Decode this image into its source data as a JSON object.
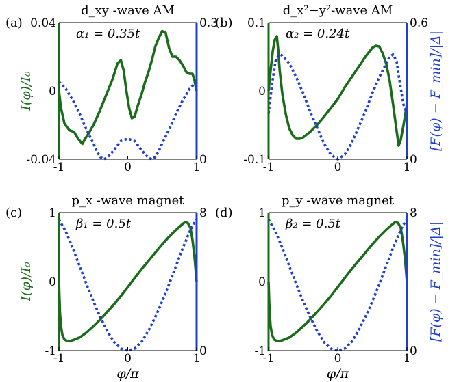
{
  "colors": {
    "green": "#1a6b1a",
    "blue": "#1f3fd0"
  },
  "ylabel_left": "I(φ)/I₀",
  "ylabel_right": "[F(φ) − F_min]/|Δ|",
  "xlabel": "φ/π",
  "chart_data": [
    {
      "panel": "(a)",
      "type": "line",
      "title": "d_xy -wave AM",
      "annotation": "α₁ = 0.35t",
      "xlim": [
        -1,
        1
      ],
      "ylim_left": [
        -0.04,
        0.04
      ],
      "ylim_right": [
        0,
        0.3
      ],
      "xticks": [
        "-1",
        "0",
        "1"
      ],
      "yticks_left": [
        "0.04",
        "0",
        "-0.04"
      ],
      "yticks_right": [
        "0.3",
        "0"
      ],
      "series": [
        {
          "axis": "left",
          "style": "solid",
          "x": [
            -1.0,
            -0.97,
            -0.92,
            -0.85,
            -0.78,
            -0.72,
            -0.66,
            -0.62,
            -0.57,
            -0.5,
            -0.42,
            -0.35,
            -0.28,
            -0.22,
            -0.15,
            -0.1,
            -0.06,
            -0.02,
            0.02,
            0.06,
            0.1,
            0.15,
            0.2,
            0.25,
            0.3,
            0.35,
            0.4,
            0.45,
            0.5,
            0.55,
            0.6,
            0.65,
            0.7,
            0.75,
            0.8,
            0.85,
            0.9,
            0.94,
            0.97,
            1.0
          ],
          "y": [
            0.0,
            -0.01,
            -0.019,
            -0.023,
            -0.024,
            -0.028,
            -0.031,
            -0.028,
            -0.025,
            -0.02,
            -0.013,
            -0.006,
            0.001,
            0.007,
            0.016,
            0.018,
            0.012,
            0.0,
            -0.01,
            -0.016,
            -0.015,
            -0.008,
            -0.002,
            0.005,
            0.011,
            0.018,
            0.026,
            0.031,
            0.035,
            0.034,
            0.025,
            0.02,
            0.02,
            0.018,
            0.015,
            0.011,
            0.01,
            0.01,
            0.006,
            0.0
          ]
        },
        {
          "axis": "right",
          "style": "dotted",
          "x": [
            -1.0,
            -0.9,
            -0.8,
            -0.7,
            -0.6,
            -0.5,
            -0.45,
            -0.4,
            -0.35,
            -0.3,
            -0.2,
            -0.1,
            0.0,
            0.1,
            0.2,
            0.3,
            0.35,
            0.4,
            0.45,
            0.5,
            0.6,
            0.7,
            0.8,
            0.9,
            1.0
          ],
          "y": [
            0.17,
            0.155,
            0.13,
            0.1,
            0.065,
            0.035,
            0.018,
            0.005,
            0.0,
            0.003,
            0.02,
            0.04,
            0.045,
            0.04,
            0.02,
            0.003,
            0.0,
            0.005,
            0.018,
            0.035,
            0.065,
            0.1,
            0.13,
            0.155,
            0.17
          ]
        }
      ]
    },
    {
      "panel": "(b)",
      "type": "line",
      "title": "d_x²−y²-wave AM",
      "annotation": "α₂ = 0.24t",
      "xlim": [
        -1,
        1
      ],
      "ylim_left": [
        -0.1,
        0.1
      ],
      "ylim_right": [
        0,
        0.6
      ],
      "xticks": [
        "-1",
        "0",
        "1"
      ],
      "yticks_left": [
        "0.1",
        "0",
        "-0.1"
      ],
      "yticks_right": [
        "0.6",
        "0"
      ],
      "series": [
        {
          "axis": "left",
          "style": "solid",
          "x": [
            -1.0,
            -0.97,
            -0.94,
            -0.91,
            -0.88,
            -0.86,
            -0.84,
            -0.8,
            -0.75,
            -0.7,
            -0.65,
            -0.6,
            -0.55,
            -0.5,
            -0.4,
            -0.3,
            -0.2,
            -0.1,
            0.0,
            0.1,
            0.2,
            0.3,
            0.4,
            0.5,
            0.55,
            0.6,
            0.65,
            0.7,
            0.75,
            0.8,
            0.84,
            0.88,
            0.91,
            0.95,
            1.0
          ],
          "y": [
            0.0,
            0.03,
            0.058,
            0.075,
            0.08,
            0.06,
            0.03,
            -0.005,
            -0.035,
            -0.055,
            -0.065,
            -0.07,
            -0.07,
            -0.068,
            -0.06,
            -0.05,
            -0.038,
            -0.025,
            -0.012,
            0.005,
            0.02,
            0.035,
            0.05,
            0.063,
            0.066,
            0.065,
            0.055,
            0.04,
            0.015,
            -0.02,
            -0.05,
            -0.08,
            -0.072,
            -0.05,
            -0.02
          ]
        },
        {
          "axis": "right",
          "style": "dotted",
          "x": [
            -1.0,
            -0.95,
            -0.9,
            -0.85,
            -0.8,
            -0.7,
            -0.6,
            -0.5,
            -0.4,
            -0.3,
            -0.2,
            -0.1,
            0.0,
            0.1,
            0.2,
            0.3,
            0.4,
            0.5,
            0.6,
            0.7,
            0.75,
            0.8,
            0.85,
            0.9,
            0.95,
            1.0
          ],
          "y": [
            0.2,
            0.33,
            0.43,
            0.46,
            0.455,
            0.42,
            0.36,
            0.29,
            0.21,
            0.14,
            0.07,
            0.02,
            0.0,
            0.02,
            0.07,
            0.14,
            0.21,
            0.29,
            0.36,
            0.42,
            0.45,
            0.46,
            0.43,
            0.33,
            0.24,
            0.2
          ]
        }
      ]
    },
    {
      "panel": "(c)",
      "type": "line",
      "title": "p_x -wave magnet",
      "annotation": "β₁ = 0.5t",
      "xlim": [
        -1,
        1
      ],
      "ylim_left": [
        -1,
        1
      ],
      "ylim_right": [
        0,
        8
      ],
      "xticks": [
        "-1",
        "0",
        "1"
      ],
      "yticks_left": [
        "1",
        "0",
        "-1"
      ],
      "yticks_right": [
        "8",
        "0"
      ],
      "series": [
        {
          "axis": "left",
          "style": "solid",
          "x": [
            -1.0,
            -0.985,
            -0.97,
            -0.95,
            -0.92,
            -0.88,
            -0.84,
            -0.8,
            -0.7,
            -0.6,
            -0.5,
            -0.4,
            -0.3,
            -0.2,
            -0.1,
            0.0,
            0.1,
            0.2,
            0.3,
            0.4,
            0.5,
            0.6,
            0.7,
            0.78,
            0.83,
            0.87,
            0.91,
            0.94,
            0.97,
            1.0
          ],
          "y": [
            0.0,
            -0.45,
            -0.65,
            -0.77,
            -0.84,
            -0.86,
            -0.86,
            -0.85,
            -0.81,
            -0.74,
            -0.65,
            -0.55,
            -0.44,
            -0.33,
            -0.21,
            -0.08,
            0.05,
            0.18,
            0.3,
            0.42,
            0.54,
            0.65,
            0.75,
            0.82,
            0.86,
            0.85,
            0.78,
            0.6,
            0.35,
            0.0
          ]
        },
        {
          "axis": "right",
          "style": "dotted",
          "x": [
            -1.0,
            -0.9,
            -0.8,
            -0.7,
            -0.6,
            -0.5,
            -0.4,
            -0.3,
            -0.2,
            -0.1,
            0.0,
            0.1,
            0.2,
            0.3,
            0.4,
            0.5,
            0.6,
            0.7,
            0.8,
            0.9,
            0.95,
            1.0
          ],
          "y": [
            7.6,
            6.9,
            5.95,
            4.9,
            3.85,
            2.85,
            1.95,
            1.15,
            0.5,
            0.12,
            0.0,
            0.12,
            0.5,
            1.15,
            1.95,
            2.85,
            3.85,
            4.9,
            5.95,
            6.9,
            7.3,
            7.6
          ]
        }
      ]
    },
    {
      "panel": "(d)",
      "type": "line",
      "title": "p_y -wave magnet",
      "annotation": "β₂ = 0.5t",
      "xlim": [
        -1,
        1
      ],
      "ylim_left": [
        -1,
        1
      ],
      "ylim_right": [
        0,
        8
      ],
      "xticks": [
        "-1",
        "0",
        "1"
      ],
      "yticks_left": [
        "1",
        "0",
        "-1"
      ],
      "yticks_right": [
        "8",
        "0"
      ],
      "series": [
        {
          "axis": "left",
          "style": "solid",
          "x": [
            -1.0,
            -0.985,
            -0.97,
            -0.95,
            -0.92,
            -0.88,
            -0.84,
            -0.8,
            -0.7,
            -0.6,
            -0.5,
            -0.4,
            -0.3,
            -0.2,
            -0.1,
            0.0,
            0.1,
            0.2,
            0.3,
            0.4,
            0.5,
            0.6,
            0.7,
            0.78,
            0.83,
            0.87,
            0.91,
            0.94,
            0.97,
            1.0
          ],
          "y": [
            0.0,
            -0.45,
            -0.65,
            -0.77,
            -0.84,
            -0.86,
            -0.86,
            -0.85,
            -0.81,
            -0.74,
            -0.65,
            -0.55,
            -0.44,
            -0.33,
            -0.21,
            -0.08,
            0.05,
            0.18,
            0.3,
            0.42,
            0.54,
            0.65,
            0.75,
            0.82,
            0.86,
            0.85,
            0.78,
            0.6,
            0.35,
            0.0
          ]
        },
        {
          "axis": "right",
          "style": "dotted",
          "x": [
            -1.0,
            -0.9,
            -0.8,
            -0.7,
            -0.6,
            -0.5,
            -0.4,
            -0.3,
            -0.2,
            -0.1,
            0.0,
            0.1,
            0.2,
            0.3,
            0.4,
            0.5,
            0.6,
            0.7,
            0.8,
            0.9,
            0.95,
            1.0
          ],
          "y": [
            7.6,
            6.9,
            5.95,
            4.9,
            3.85,
            2.85,
            1.95,
            1.15,
            0.5,
            0.12,
            0.0,
            0.12,
            0.5,
            1.15,
            1.95,
            2.85,
            3.85,
            4.9,
            5.95,
            6.9,
            7.3,
            7.6
          ]
        }
      ]
    }
  ]
}
